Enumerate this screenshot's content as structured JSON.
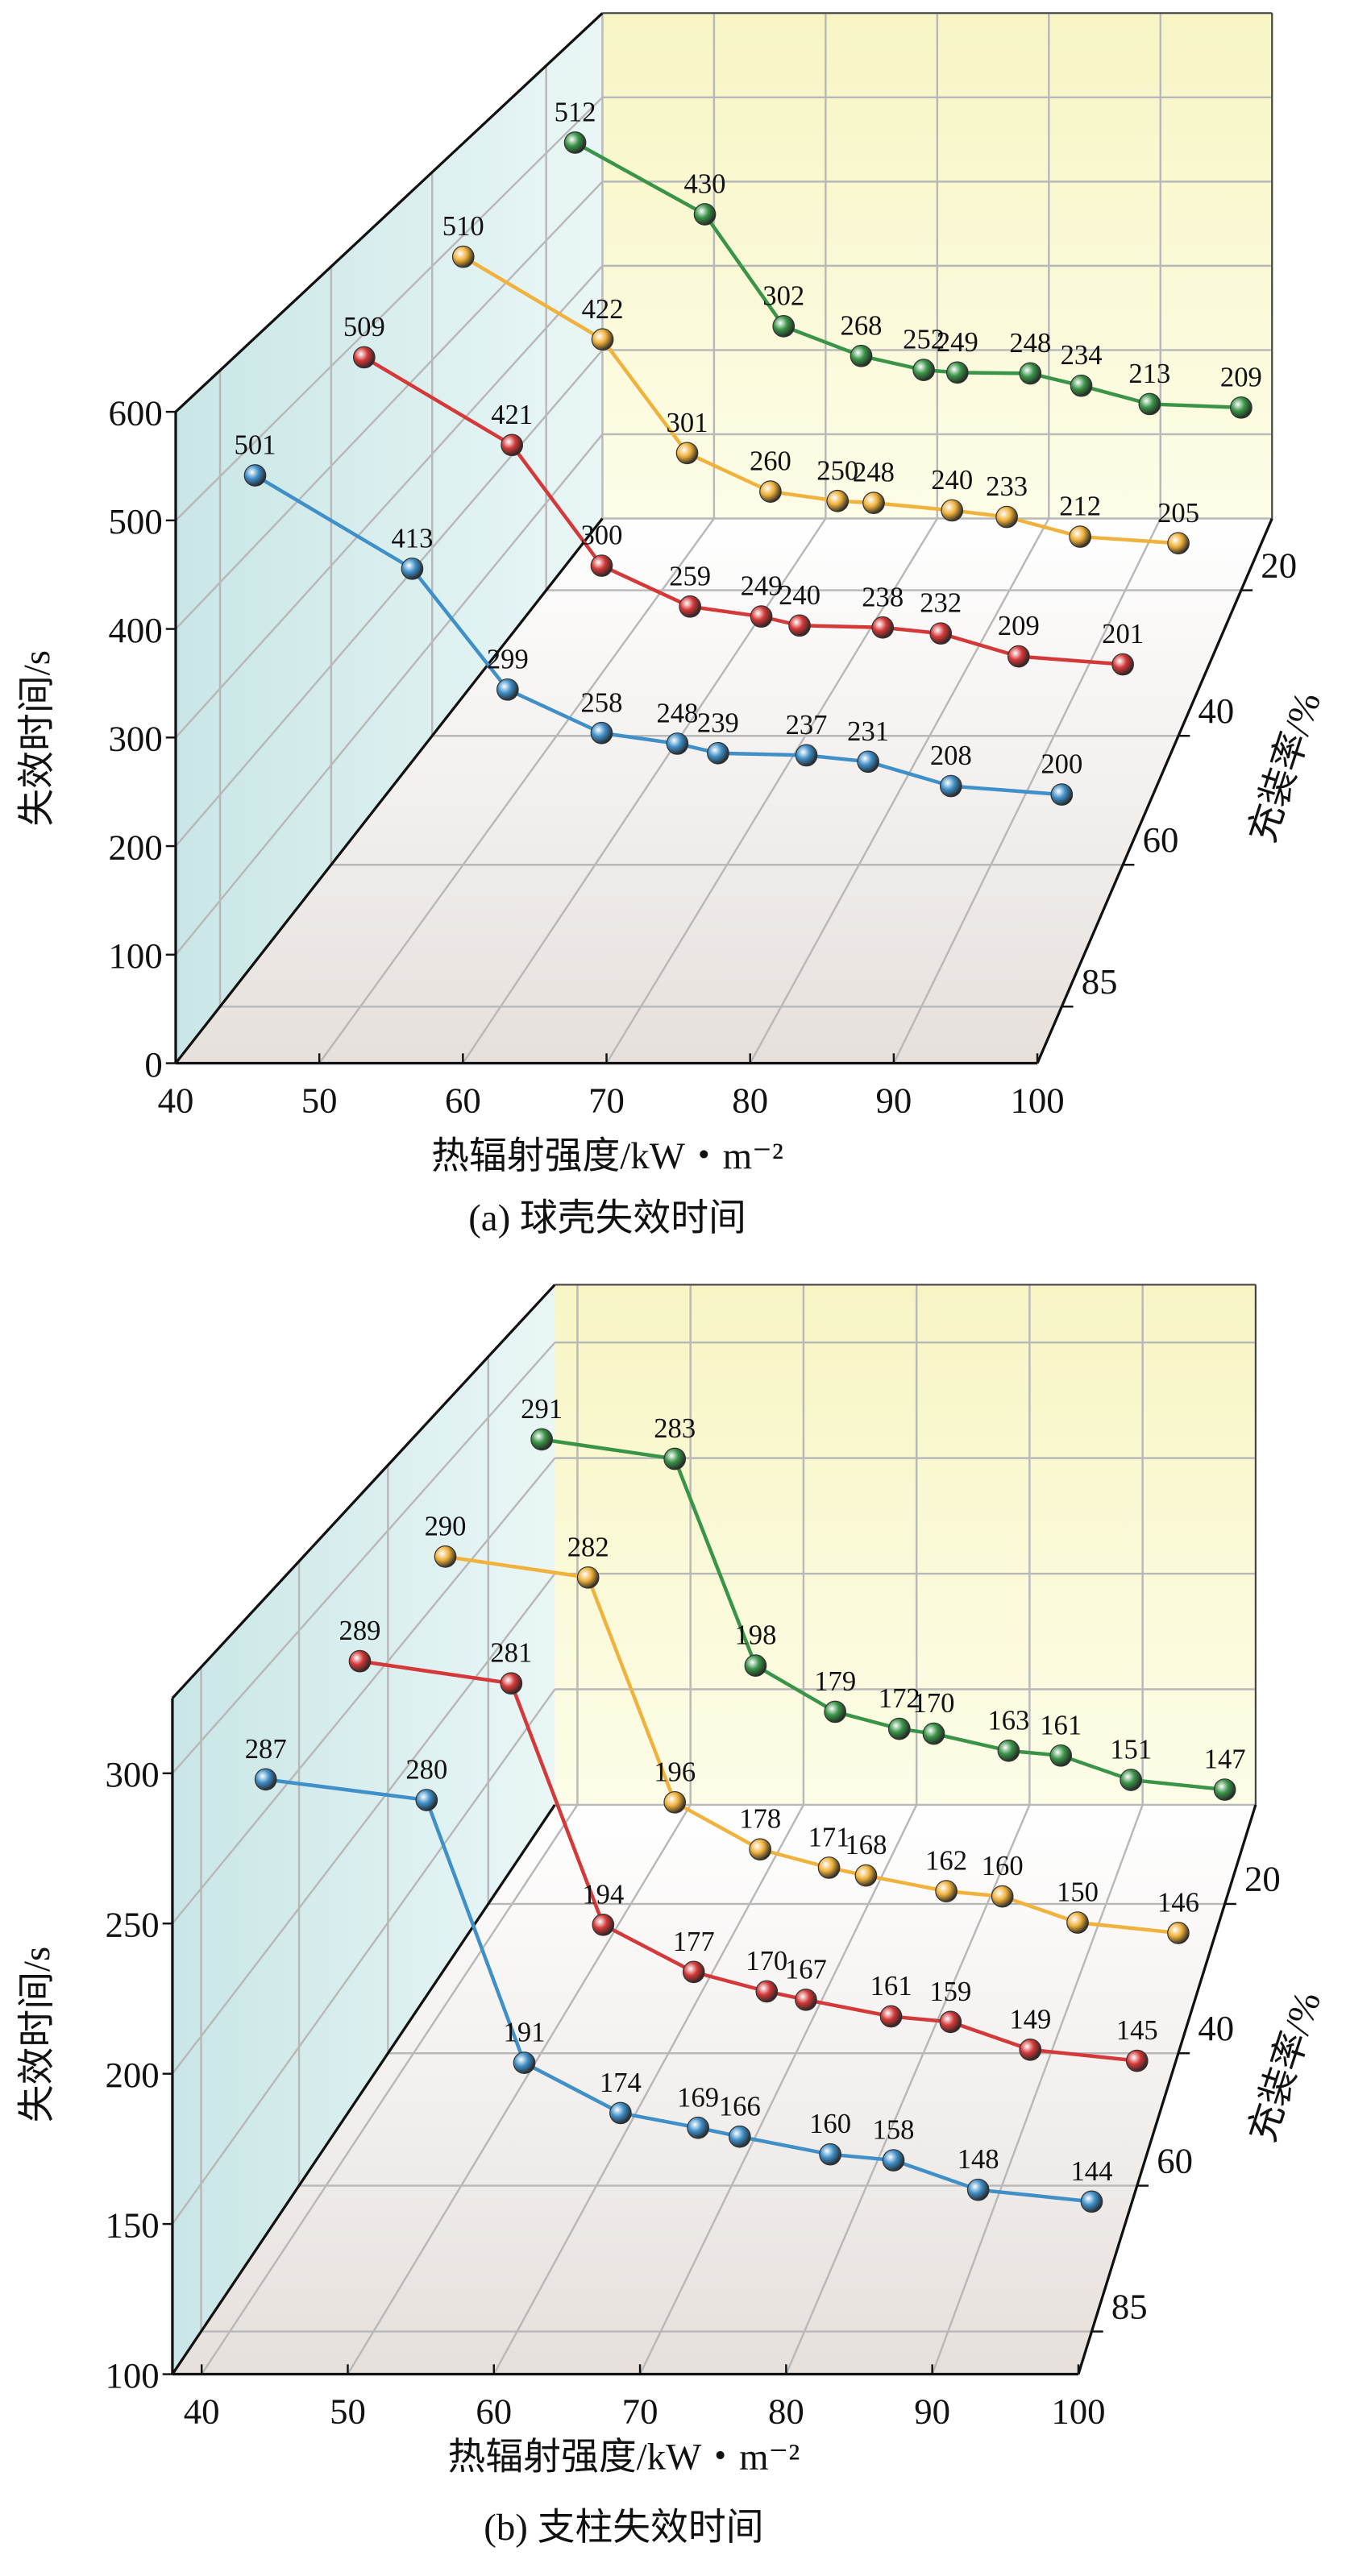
{
  "chart_data": [
    {
      "type": "line",
      "caption": "(a) 球壳失效时间",
      "xlabel": "热辐射强度/kW・m⁻²",
      "ylabel": "失效时间/s",
      "depth_label": "充装率/%",
      "x": [
        42.5,
        53.7,
        60.5,
        67.2,
        72.6,
        75.5,
        81.8,
        86.2,
        92.1,
        100
      ],
      "xlim": [
        40,
        100
      ],
      "xticks": [
        40,
        50,
        60,
        70,
        80,
        90,
        100
      ],
      "ylim": [
        0,
        600
      ],
      "yticks": [
        0,
        100,
        200,
        300,
        400,
        500,
        600
      ],
      "depthlim": [
        96,
        11
      ],
      "depthticks": [
        20,
        40,
        60,
        85
      ],
      "grid": true,
      "series": [
        {
          "depth": 85,
          "color": "#3f8fc8",
          "values": [
            501,
            413,
            299,
            258,
            248,
            239,
            237,
            231,
            208,
            200
          ]
        },
        {
          "depth": 60,
          "color": "#d43838",
          "values": [
            509,
            421,
            300,
            259,
            249,
            240,
            238,
            232,
            209,
            201
          ]
        },
        {
          "depth": 40,
          "color": "#f0b23c",
          "values": [
            510,
            422,
            301,
            260,
            250,
            248,
            240,
            233,
            212,
            205
          ]
        },
        {
          "depth": 20,
          "color": "#3a9448",
          "values": [
            512,
            430,
            302,
            268,
            252,
            249,
            248,
            234,
            213,
            209
          ]
        }
      ]
    },
    {
      "type": "line",
      "caption": "(b) 支柱失效时间",
      "xlabel": "热辐射强度/kW・m⁻²",
      "ylabel": "失效时间/s",
      "depth_label": "充装率/%",
      "x": [
        42.5,
        53.7,
        60.5,
        67.2,
        72.6,
        75.5,
        81.8,
        86.2,
        92.1,
        100
      ],
      "xlim": [
        38,
        100
      ],
      "xticks": [
        40,
        50,
        60,
        70,
        80,
        90,
        100
      ],
      "ylim": [
        100,
        325
      ],
      "yticks": [
        100,
        150,
        200,
        250,
        300
      ],
      "depthlim": [
        93,
        8
      ],
      "depthticks": [
        20,
        40,
        60,
        85
      ],
      "grid": true,
      "series": [
        {
          "depth": 85,
          "color": "#3f8fc8",
          "values": [
            287,
            280,
            191,
            174,
            169,
            166,
            160,
            158,
            148,
            144
          ]
        },
        {
          "depth": 60,
          "color": "#d43838",
          "values": [
            289,
            281,
            194,
            177,
            170,
            167,
            161,
            159,
            149,
            145
          ]
        },
        {
          "depth": 40,
          "color": "#f0b23c",
          "values": [
            290,
            282,
            196,
            178,
            171,
            168,
            162,
            160,
            150,
            146
          ]
        },
        {
          "depth": 20,
          "color": "#3a9448",
          "values": [
            291,
            283,
            198,
            179,
            172,
            170,
            163,
            161,
            151,
            147
          ]
        }
      ]
    }
  ]
}
